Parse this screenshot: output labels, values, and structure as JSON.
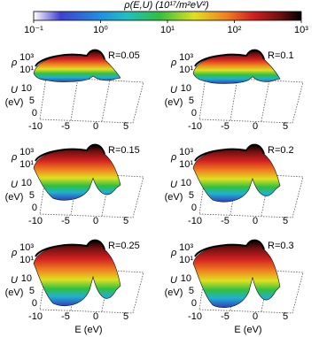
{
  "colorbar": {
    "label": "ρ(E,U) (10¹⁷/m²eV²)",
    "ticks": [
      "10⁻¹",
      "10⁰",
      "10¹",
      "10²",
      "10³"
    ]
  },
  "axes": {
    "rho_label": "ρ",
    "rho_ticks": [
      "10³",
      "10¹"
    ],
    "u_label": "U",
    "u_unit": "(eV)",
    "u_ticks": [
      "0",
      "5",
      "10"
    ],
    "e_ticks": [
      "-10",
      "-5",
      "0",
      "5"
    ],
    "e_label": "E (eV)"
  },
  "panels": [
    {
      "label": "R=0.05"
    },
    {
      "label": "R=0.1"
    },
    {
      "label": "R=0.15"
    },
    {
      "label": "R=0.2"
    },
    {
      "label": "R=0.25"
    },
    {
      "label": "R=0.3"
    }
  ]
}
